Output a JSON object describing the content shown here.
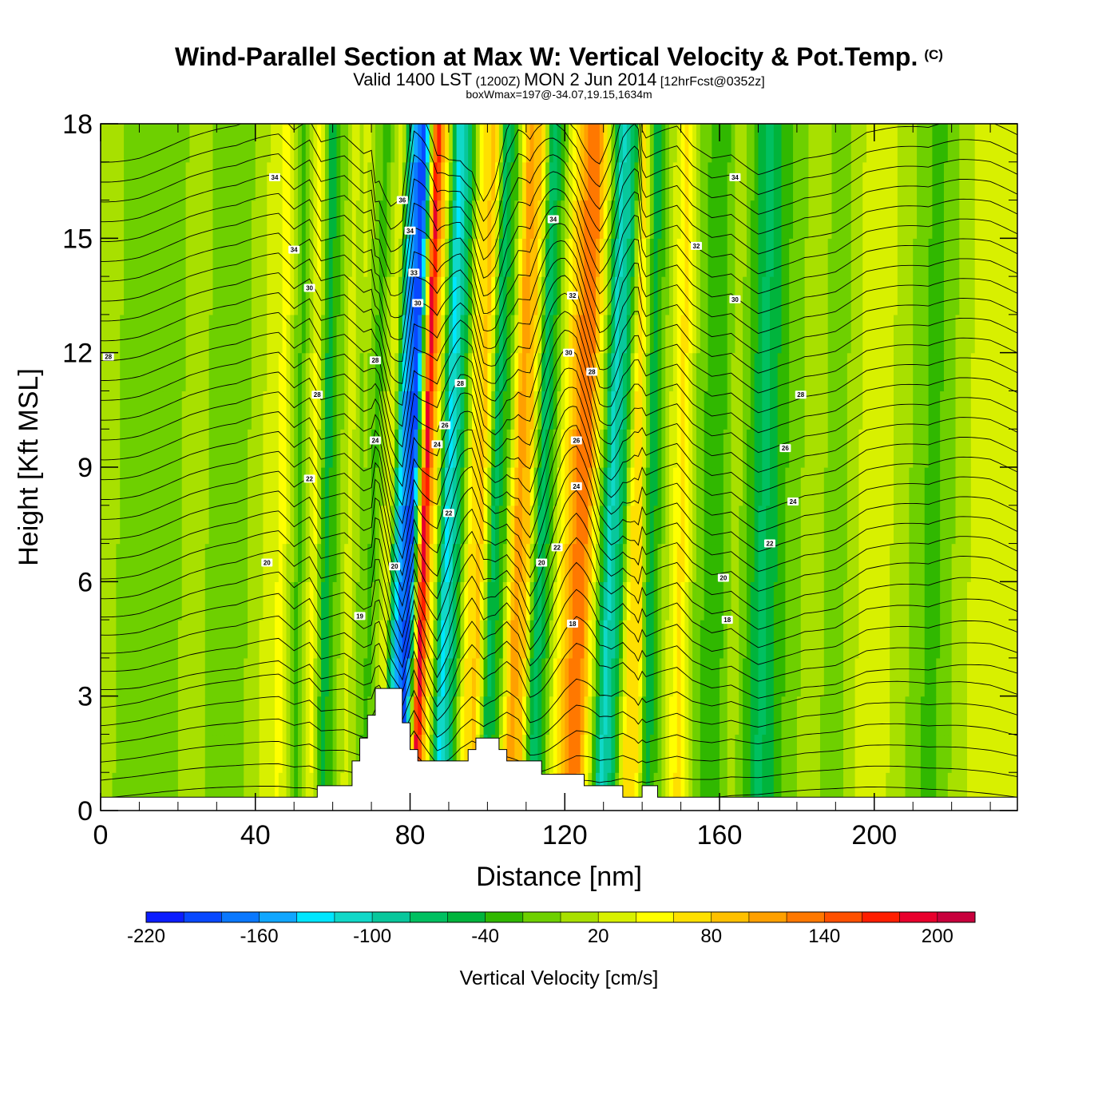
{
  "titles": {
    "main": "Wind-Parallel Section at Max W: Vertical Velocity & Pot.Temp.",
    "copyright": "(C)",
    "valid_a": "Valid 1400 LST",
    "valid_b": "(1200Z)",
    "valid_c": "MON 2 Jun 2014",
    "valid_d": "[12hrFcst@0352z]",
    "box": "boxWmax=197@-34.07,19.15,1634m"
  },
  "chart_data": {
    "type": "heatmap",
    "xlabel": "Distance [nm]",
    "ylabel": "Height [Kft MSL]",
    "xlim": [
      0,
      237
    ],
    "ylim": [
      0,
      18
    ],
    "x_ticks": [
      0,
      40,
      80,
      120,
      160,
      200
    ],
    "x_tick_labels": [
      "0",
      "40",
      "80",
      "120",
      "160",
      "200"
    ],
    "y_ticks": [
      0,
      3,
      6,
      9,
      12,
      15,
      18
    ],
    "y_tick_labels": [
      "0",
      "3",
      "6",
      "9",
      "12",
      "15",
      "18"
    ],
    "colorbar": {
      "title": "Vertical Velocity [cm/s]",
      "min": -220,
      "step": 20,
      "labels": [
        "-220",
        "-160",
        "-100",
        "-40",
        "20",
        "80",
        "140",
        "200"
      ],
      "colors": [
        "#0b1dff",
        "#0848ff",
        "#0a78ff",
        "#10a6ff",
        "#00e6ff",
        "#10d8c8",
        "#08c79c",
        "#00c060",
        "#00b43c",
        "#30b800",
        "#6ed000",
        "#a8e000",
        "#d8f000",
        "#ffff00",
        "#ffe000",
        "#ffc000",
        "#ffa000",
        "#ff7800",
        "#ff5000",
        "#ff1e00",
        "#e8002c",
        "#c8003c"
      ]
    },
    "vertical_velocity_bands": [
      {
        "x": 0,
        "w": 6
      },
      {
        "x": 10,
        "w": -12
      },
      {
        "x": 23,
        "w": 4
      },
      {
        "x": 35,
        "w": -10
      },
      {
        "x": 46,
        "w": 48
      },
      {
        "x": 50,
        "w": -30
      },
      {
        "x": 54,
        "w": 50
      },
      {
        "x": 57,
        "w": -55
      },
      {
        "x": 63,
        "w": 30
      },
      {
        "x": 68,
        "w": -30
      },
      {
        "x": 72,
        "w": 40
      },
      {
        "x": 75,
        "w": -150
      },
      {
        "x": 78,
        "w": -200
      },
      {
        "x": 81,
        "w": 197
      },
      {
        "x": 84,
        "w": 40
      },
      {
        "x": 87,
        "w": -130
      },
      {
        "x": 90,
        "w": -60
      },
      {
        "x": 93,
        "w": 60
      },
      {
        "x": 96,
        "w": 90
      },
      {
        "x": 99,
        "w": -70
      },
      {
        "x": 102,
        "w": -20
      },
      {
        "x": 105,
        "w": 110
      },
      {
        "x": 108,
        "w": 90
      },
      {
        "x": 111,
        "w": -80
      },
      {
        "x": 114,
        "w": -20
      },
      {
        "x": 117,
        "w": 60
      },
      {
        "x": 120,
        "w": 120
      },
      {
        "x": 123,
        "w": 130
      },
      {
        "x": 126,
        "w": 20
      },
      {
        "x": 129,
        "w": -110
      },
      {
        "x": 132,
        "w": -70
      },
      {
        "x": 135,
        "w": 70
      },
      {
        "x": 138,
        "w": 60
      },
      {
        "x": 141,
        "w": -60
      },
      {
        "x": 145,
        "w": 10
      },
      {
        "x": 149,
        "w": 70
      },
      {
        "x": 153,
        "w": -10
      },
      {
        "x": 158,
        "w": -40
      },
      {
        "x": 163,
        "w": 15
      },
      {
        "x": 170,
        "w": -70
      },
      {
        "x": 176,
        "w": -20
      },
      {
        "x": 182,
        "w": 10
      },
      {
        "x": 190,
        "w": -10
      },
      {
        "x": 198,
        "w": 40
      },
      {
        "x": 206,
        "w": 10
      },
      {
        "x": 214,
        "w": -30
      },
      {
        "x": 222,
        "w": 15
      },
      {
        "x": 230,
        "w": 40
      },
      {
        "x": 237,
        "w": 20
      }
    ],
    "terrain_profile": [
      [
        0,
        0.35
      ],
      [
        56,
        0.35
      ],
      [
        56,
        0.65
      ],
      [
        65,
        0.65
      ],
      [
        65,
        1.3
      ],
      [
        67,
        1.3
      ],
      [
        67,
        1.9
      ],
      [
        69,
        1.9
      ],
      [
        69,
        2.5
      ],
      [
        71,
        2.5
      ],
      [
        71,
        3.2
      ],
      [
        78,
        3.2
      ],
      [
        78,
        2.3
      ],
      [
        80,
        2.3
      ],
      [
        80,
        1.6
      ],
      [
        82,
        1.6
      ],
      [
        82,
        1.3
      ],
      [
        95,
        1.3
      ],
      [
        95,
        1.6
      ],
      [
        97,
        1.6
      ],
      [
        97,
        1.9
      ],
      [
        103,
        1.9
      ],
      [
        103,
        1.6
      ],
      [
        105,
        1.6
      ],
      [
        105,
        1.3
      ],
      [
        114,
        1.3
      ],
      [
        114,
        0.95
      ],
      [
        125,
        0.95
      ],
      [
        125,
        0.65
      ],
      [
        135,
        0.65
      ],
      [
        135,
        0.35
      ],
      [
        140,
        0.35
      ],
      [
        140,
        0.65
      ],
      [
        144,
        0.65
      ],
      [
        144,
        0.35
      ],
      [
        237,
        0.35
      ]
    ],
    "isentrope_labels": [
      {
        "x": 2,
        "y": 11.9,
        "text": "28"
      },
      {
        "x": 45,
        "y": 16.6,
        "text": "34"
      },
      {
        "x": 50,
        "y": 14.7,
        "text": "34"
      },
      {
        "x": 54,
        "y": 13.7,
        "text": "30"
      },
      {
        "x": 56,
        "y": 10.9,
        "text": "28"
      },
      {
        "x": 71,
        "y": 11.8,
        "text": "28"
      },
      {
        "x": 71,
        "y": 9.7,
        "text": "24"
      },
      {
        "x": 54,
        "y": 8.7,
        "text": "22"
      },
      {
        "x": 43,
        "y": 6.5,
        "text": "20"
      },
      {
        "x": 67,
        "y": 5.1,
        "text": "19"
      },
      {
        "x": 76,
        "y": 6.4,
        "text": "20"
      },
      {
        "x": 78,
        "y": 16.0,
        "text": "36"
      },
      {
        "x": 80,
        "y": 15.2,
        "text": "34"
      },
      {
        "x": 81,
        "y": 14.1,
        "text": "33"
      },
      {
        "x": 82,
        "y": 13.3,
        "text": "30"
      },
      {
        "x": 93,
        "y": 11.2,
        "text": "28"
      },
      {
        "x": 89,
        "y": 10.1,
        "text": "26"
      },
      {
        "x": 87,
        "y": 9.6,
        "text": "24"
      },
      {
        "x": 90,
        "y": 7.8,
        "text": "22"
      },
      {
        "x": 117,
        "y": 15.5,
        "text": "34"
      },
      {
        "x": 122,
        "y": 13.5,
        "text": "32"
      },
      {
        "x": 121,
        "y": 12.0,
        "text": "30"
      },
      {
        "x": 127,
        "y": 11.5,
        "text": "28"
      },
      {
        "x": 123,
        "y": 9.7,
        "text": "26"
      },
      {
        "x": 123,
        "y": 8.5,
        "text": "24"
      },
      {
        "x": 118,
        "y": 6.9,
        "text": "22"
      },
      {
        "x": 114,
        "y": 6.5,
        "text": "20"
      },
      {
        "x": 122,
        "y": 4.9,
        "text": "18"
      },
      {
        "x": 164,
        "y": 16.6,
        "text": "34"
      },
      {
        "x": 154,
        "y": 14.8,
        "text": "32"
      },
      {
        "x": 164,
        "y": 13.4,
        "text": "30"
      },
      {
        "x": 181,
        "y": 10.9,
        "text": "28"
      },
      {
        "x": 177,
        "y": 9.5,
        "text": "26"
      },
      {
        "x": 179,
        "y": 8.1,
        "text": "24"
      },
      {
        "x": 173,
        "y": 7.0,
        "text": "22"
      },
      {
        "x": 161,
        "y": 6.1,
        "text": "20"
      },
      {
        "x": 162,
        "y": 5.0,
        "text": "18"
      }
    ]
  }
}
